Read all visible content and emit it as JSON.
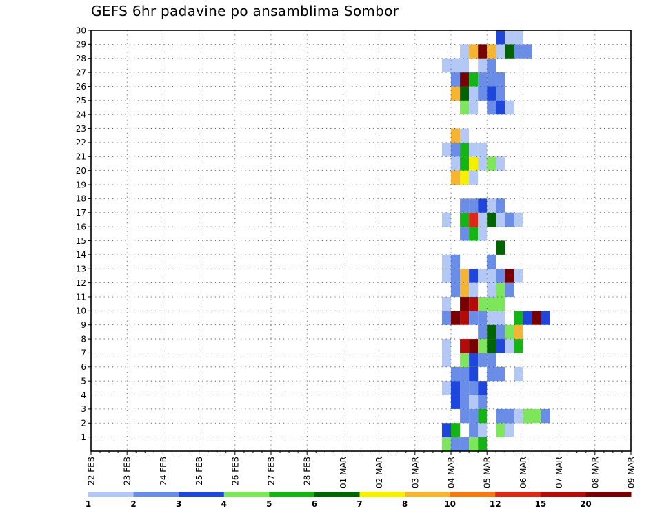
{
  "chart_data": {
    "type": "heatmap",
    "title": "GEFS 6hr padavine po ansamblima Sombor",
    "y_members": [
      1,
      2,
      3,
      4,
      5,
      6,
      7,
      8,
      9,
      10,
      11,
      12,
      13,
      14,
      15,
      16,
      17,
      18,
      19,
      20,
      21,
      22,
      23,
      24,
      25,
      26,
      27,
      28,
      29,
      30
    ],
    "x_labels": [
      "22 FEB",
      "23 FEB",
      "24 FEB",
      "25 FEB",
      "26 FEB",
      "27 FEB",
      "28 FEB",
      "01 MAR",
      "02 MAR",
      "03 MAR",
      "04 MAR",
      "05 MAR",
      "06 MAR",
      "07 MAR",
      "08 MAR",
      "09 MAR"
    ],
    "time_step": "6hr",
    "grid": true,
    "legend_position": "bottom",
    "legend": {
      "labels": [
        "1",
        "2",
        "3",
        "4",
        "5",
        "6",
        "7",
        "8",
        "10",
        "12",
        "15",
        "20"
      ],
      "colors": [
        "#b4c8f5",
        "#6a8ee8",
        "#1e46dc",
        "#7ee65a",
        "#14b414",
        "#006400",
        "#f5f000",
        "#f5b432",
        "#f57814",
        "#dc2814",
        "#b40a0a",
        "#780000"
      ]
    },
    "cells": [
      [
        9.75,
        0,
        2
      ],
      [
        9.75,
        0,
        3
      ],
      [
        10,
        0,
        1
      ],
      [
        10.25,
        0,
        1
      ],
      [
        10.5,
        0,
        3
      ],
      [
        10.75,
        0,
        4
      ],
      [
        9.75,
        1,
        2
      ],
      [
        10,
        1,
        4
      ],
      [
        10.5,
        1,
        1
      ],
      [
        10.75,
        1,
        0
      ],
      [
        11.25,
        1,
        3
      ],
      [
        11.5,
        1,
        0
      ],
      [
        11.5,
        2,
        1
      ],
      [
        11.75,
        2,
        1
      ],
      [
        12,
        2,
        2
      ],
      [
        12.25,
        2,
        3
      ],
      [
        12.5,
        2,
        1
      ],
      [
        10.25,
        2,
        1
      ],
      [
        10.5,
        2,
        1
      ],
      [
        10.75,
        2,
        4
      ],
      [
        11.25,
        2,
        1
      ],
      [
        11.5,
        2,
        1
      ],
      [
        11.75,
        2,
        0
      ],
      [
        12,
        2,
        3
      ],
      [
        10,
        3,
        2
      ],
      [
        10.25,
        3,
        1
      ],
      [
        10.5,
        3,
        0
      ],
      [
        10.75,
        3,
        1
      ],
      [
        9.75,
        4,
        0
      ],
      [
        10,
        4,
        2
      ],
      [
        10.25,
        4,
        1
      ],
      [
        10.5,
        4,
        1
      ],
      [
        10.75,
        4,
        2
      ],
      [
        10,
        5,
        1
      ],
      [
        10.25,
        5,
        1
      ],
      [
        10.5,
        5,
        2
      ],
      [
        11,
        5,
        1
      ],
      [
        11.25,
        5,
        1
      ],
      [
        11.75,
        5,
        0
      ],
      [
        9.75,
        6,
        0
      ],
      [
        10.25,
        6,
        3
      ],
      [
        10.5,
        6,
        2
      ],
      [
        10.75,
        6,
        1
      ],
      [
        11,
        6,
        1
      ],
      [
        9.75,
        7,
        0
      ],
      [
        10.25,
        7,
        10
      ],
      [
        10.5,
        7,
        11
      ],
      [
        10.75,
        7,
        3
      ],
      [
        11,
        7,
        5
      ],
      [
        11.25,
        7,
        2
      ],
      [
        11.5,
        7,
        0
      ],
      [
        11.75,
        7,
        1
      ],
      [
        11.75,
        7,
        4
      ],
      [
        10.75,
        8,
        1
      ],
      [
        11,
        8,
        5
      ],
      [
        11.25,
        8,
        1
      ],
      [
        11.5,
        8,
        3
      ],
      [
        11.75,
        8,
        7
      ],
      [
        9.75,
        9,
        1
      ],
      [
        10,
        9,
        11
      ],
      [
        10.25,
        9,
        10
      ],
      [
        10.5,
        9,
        1
      ],
      [
        10.75,
        9,
        1
      ],
      [
        11,
        9,
        0
      ],
      [
        11.25,
        9,
        0
      ],
      [
        11.75,
        9,
        4
      ],
      [
        12,
        9,
        2
      ],
      [
        12.25,
        9,
        11
      ],
      [
        12.5,
        9,
        2
      ],
      [
        9.75,
        10,
        0
      ],
      [
        10.25,
        10,
        11
      ],
      [
        10.5,
        10,
        10
      ],
      [
        10.75,
        10,
        3
      ],
      [
        11,
        10,
        3
      ],
      [
        11.25,
        10,
        3
      ],
      [
        10,
        11,
        1
      ],
      [
        10.25,
        11,
        7
      ],
      [
        10.5,
        11,
        0
      ],
      [
        11,
        11,
        0
      ],
      [
        11.25,
        11,
        3
      ],
      [
        11.5,
        11,
        1
      ],
      [
        9.75,
        12,
        0
      ],
      [
        10,
        12,
        1
      ],
      [
        10.25,
        12,
        7
      ],
      [
        10.5,
        12,
        2
      ],
      [
        10.75,
        12,
        0
      ],
      [
        11,
        12,
        0
      ],
      [
        11.25,
        12,
        1
      ],
      [
        11.5,
        12,
        11
      ],
      [
        11.75,
        12,
        0
      ],
      [
        9.75,
        13,
        0
      ],
      [
        10,
        13,
        1
      ],
      [
        11,
        13,
        1
      ],
      [
        11.25,
        14,
        5
      ],
      [
        10.25,
        15,
        1
      ],
      [
        10.5,
        15,
        4
      ],
      [
        10.75,
        15,
        0
      ],
      [
        9.75,
        16,
        0
      ],
      [
        10.25,
        16,
        4
      ],
      [
        10.5,
        16,
        9
      ],
      [
        10.75,
        16,
        0
      ],
      [
        11,
        16,
        5
      ],
      [
        11.25,
        16,
        0
      ],
      [
        11.5,
        16,
        1
      ],
      [
        11.75,
        16,
        0
      ],
      [
        10.25,
        17,
        1
      ],
      [
        10.5,
        17,
        1
      ],
      [
        10.75,
        17,
        2
      ],
      [
        11,
        17,
        0
      ],
      [
        11.25,
        17,
        1
      ],
      [
        10,
        19,
        7
      ],
      [
        10.25,
        19,
        6
      ],
      [
        10.5,
        19,
        0
      ],
      [
        10,
        20,
        0
      ],
      [
        10.25,
        20,
        4
      ],
      [
        10.5,
        20,
        6
      ],
      [
        10.75,
        20,
        0
      ],
      [
        11,
        20,
        3
      ],
      [
        11.25,
        20,
        0
      ],
      [
        9.75,
        21,
        0
      ],
      [
        10,
        21,
        1
      ],
      [
        10.25,
        21,
        4
      ],
      [
        10.5,
        21,
        0
      ],
      [
        10.75,
        21,
        0
      ],
      [
        10,
        22,
        7
      ],
      [
        10.25,
        22,
        0
      ],
      [
        10.25,
        24,
        3
      ],
      [
        10.5,
        24,
        0
      ],
      [
        11,
        24,
        1
      ],
      [
        11.25,
        24,
        2
      ],
      [
        11.5,
        24,
        0
      ],
      [
        10,
        25,
        7
      ],
      [
        10.25,
        25,
        5
      ],
      [
        10.5,
        25,
        0
      ],
      [
        10.75,
        25,
        1
      ],
      [
        11,
        25,
        2
      ],
      [
        11.25,
        25,
        1
      ],
      [
        10,
        26,
        1
      ],
      [
        10.25,
        26,
        11
      ],
      [
        10.5,
        26,
        4
      ],
      [
        10.75,
        26,
        1
      ],
      [
        11,
        26,
        1
      ],
      [
        11.25,
        26,
        1
      ],
      [
        9.75,
        27,
        0
      ],
      [
        10,
        27,
        0
      ],
      [
        10.25,
        27,
        0
      ],
      [
        10.75,
        27,
        0
      ],
      [
        11,
        27,
        1
      ],
      [
        10.25,
        28,
        0
      ],
      [
        10.5,
        28,
        7
      ],
      [
        10.75,
        28,
        11
      ],
      [
        11,
        28,
        7
      ],
      [
        11.25,
        28,
        0
      ],
      [
        11.5,
        28,
        5
      ],
      [
        11.75,
        28,
        1
      ],
      [
        12,
        28,
        1
      ],
      [
        11.25,
        29,
        2
      ],
      [
        11.5,
        29,
        0
      ],
      [
        11.75,
        29,
        0
      ]
    ]
  }
}
